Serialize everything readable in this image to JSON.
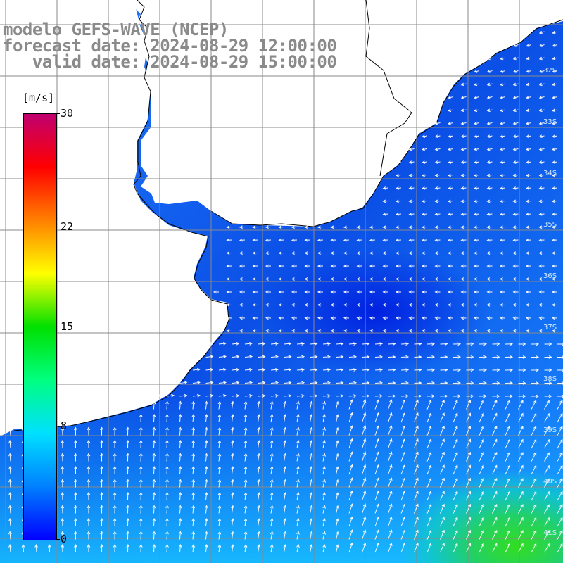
{
  "title": {
    "line1": "modelo GEFS-WAVE (NCEP)",
    "line2": "forecast date: 2024-08-29 12:00:00",
    "line3": "   valid date: 2024-08-29 15:00:00"
  },
  "colorbar": {
    "unit": "[m/s]",
    "ticks": [
      "30",
      "22",
      "15",
      "8",
      "0"
    ],
    "tick_values": [
      30,
      22,
      15,
      8,
      0
    ],
    "min": 0,
    "max": 30,
    "stops": [
      "#0000ff",
      "#0080ff",
      "#00e0ff",
      "#00ff80",
      "#00e000",
      "#ffff00",
      "#ff8000",
      "#ff0000",
      "#c00070"
    ]
  },
  "map": {
    "ocean_base_color": "#1a7cff",
    "land_color": "#ffffff",
    "grid_color": "#888888",
    "coast_color": "#000000",
    "arrow_color": "#ffffff",
    "lat_labels": [
      "32S",
      "33S",
      "34S",
      "35S",
      "36S",
      "37S",
      "38S",
      "39S",
      "40S",
      "41S"
    ]
  }
}
